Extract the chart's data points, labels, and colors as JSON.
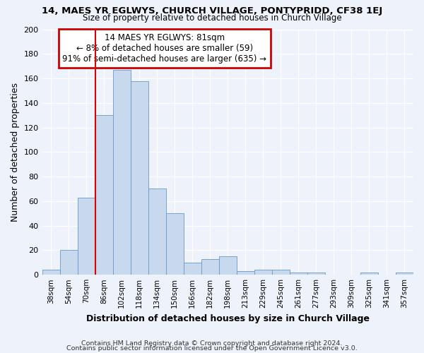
{
  "title1": "14, MAES YR EGLWYS, CHURCH VILLAGE, PONTYPRIDD, CF38 1EJ",
  "title2": "Size of property relative to detached houses in Church Village",
  "xlabel": "Distribution of detached houses by size in Church Village",
  "ylabel": "Number of detached properties",
  "categories": [
    "38sqm",
    "54sqm",
    "70sqm",
    "86sqm",
    "102sqm",
    "118sqm",
    "134sqm",
    "150sqm",
    "166sqm",
    "182sqm",
    "198sqm",
    "213sqm",
    "229sqm",
    "245sqm",
    "261sqm",
    "277sqm",
    "293sqm",
    "309sqm",
    "325sqm",
    "341sqm",
    "357sqm"
  ],
  "values": [
    4,
    20,
    63,
    130,
    167,
    158,
    70,
    50,
    10,
    13,
    15,
    3,
    4,
    4,
    2,
    2,
    0,
    0,
    2,
    0,
    2
  ],
  "bar_color": "#c8d9ed",
  "bar_edge_color": "#6699cc",
  "background_color": "#eef2fa",
  "plot_bg_color": "#eef2fa",
  "grid_color": "#ffffff",
  "red_line_x": 3.0,
  "annotation_title": "14 MAES YR EGLWYS: 81sqm",
  "annotation_line1": "← 8% of detached houses are smaller (59)",
  "annotation_line2": "91% of semi-detached houses are larger (635) →",
  "annotation_box_facecolor": "#ffffff",
  "annotation_box_edgecolor": "#cc0000",
  "red_line_color": "#dd0000",
  "ylim": [
    0,
    200
  ],
  "yticks": [
    0,
    20,
    40,
    60,
    80,
    100,
    120,
    140,
    160,
    180,
    200
  ],
  "footer1": "Contains HM Land Registry data © Crown copyright and database right 2024.",
  "footer2": "Contains public sector information licensed under the Open Government Licence v3.0."
}
